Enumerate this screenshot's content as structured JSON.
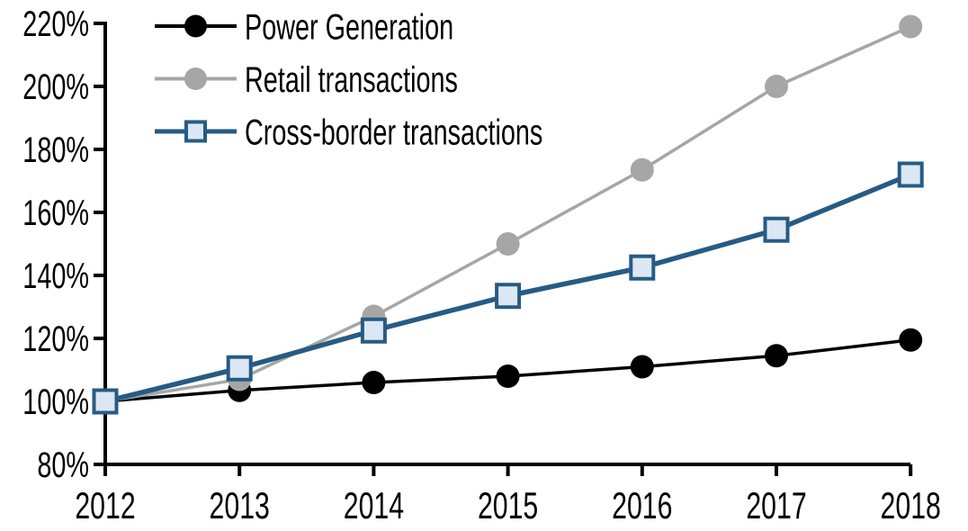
{
  "chart_data": {
    "type": "line",
    "x_labels": [
      "2012",
      "2013",
      "2014",
      "2015",
      "2016",
      "2017",
      "2018"
    ],
    "ytick_labels": [
      "80%",
      "100%",
      "120%",
      "140%",
      "160%",
      "180%",
      "200%",
      "220%"
    ],
    "ylim": [
      80,
      220
    ],
    "ytick_step": 20,
    "ytick_suffix": "%",
    "grid": false,
    "legend_position": "top-left",
    "axis_color": "#000000",
    "series": [
      {
        "name": "Power Generation",
        "color": "#000000",
        "marker": "circle",
        "marker_fill": "#000000",
        "values": [
          100,
          103.5,
          106,
          108,
          111,
          114.5,
          119.5
        ]
      },
      {
        "name": "Retail transactions",
        "color": "#a6a6a6",
        "marker": "circle",
        "marker_fill": "#a6a6a6",
        "values": [
          100,
          107,
          127,
          150,
          173.5,
          200,
          219
        ]
      },
      {
        "name": "Cross-border transactions",
        "color": "#275B84",
        "marker": "square",
        "marker_fill": "#dbe8f4",
        "values": [
          100,
          110.5,
          122.5,
          133.5,
          142.5,
          154.5,
          172
        ]
      }
    ]
  }
}
